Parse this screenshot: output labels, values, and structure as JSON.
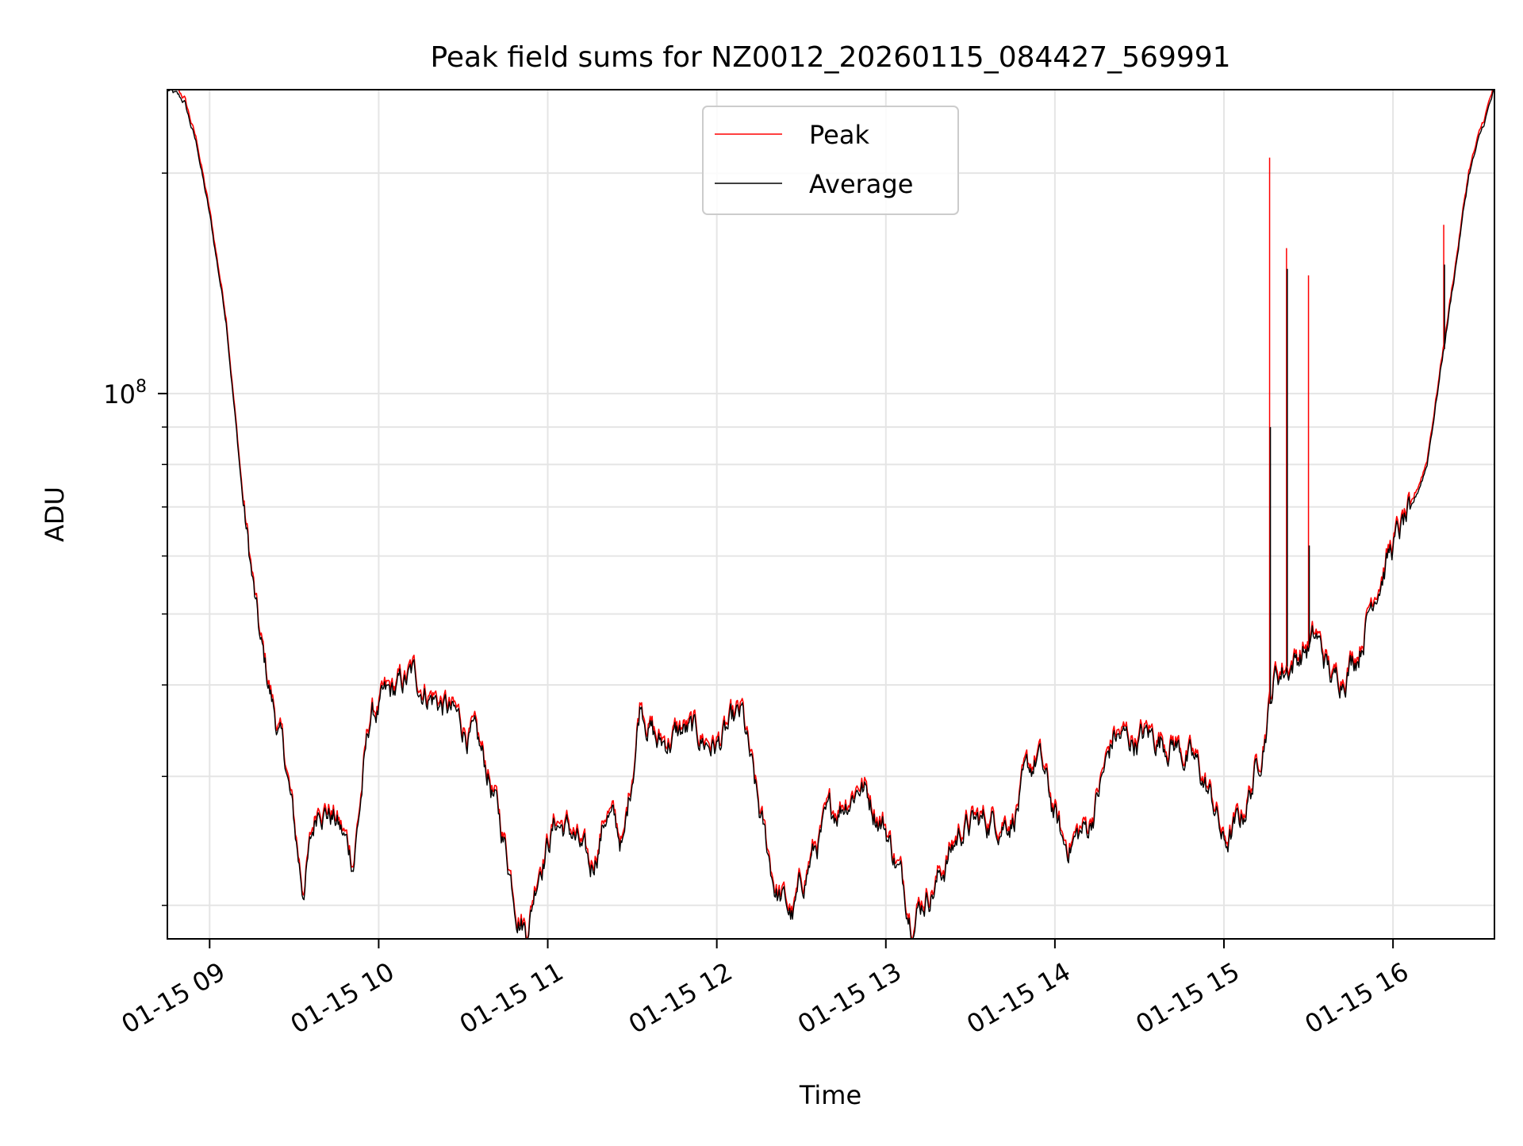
{
  "chart_data": {
    "type": "line",
    "title": "Peak field sums for NZ0012_20260115_084427_569991",
    "xlabel": "Time",
    "ylabel": "ADU",
    "yscale": "log",
    "ylim": [
      18000000,
      260000000
    ],
    "xlim_hours": [
      8.75,
      16.6
    ],
    "x_ticks": [
      {
        "hour": 9,
        "label": "01-15 09"
      },
      {
        "hour": 10,
        "label": "01-15 10"
      },
      {
        "hour": 11,
        "label": "01-15 11"
      },
      {
        "hour": 12,
        "label": "01-15 12"
      },
      {
        "hour": 13,
        "label": "01-15 13"
      },
      {
        "hour": 14,
        "label": "01-15 14"
      },
      {
        "hour": 15,
        "label": "01-15 15"
      },
      {
        "hour": 16,
        "label": "01-15 16"
      }
    ],
    "y_major_ticks": [
      {
        "value": 100000000,
        "base": "10",
        "exp": "8"
      }
    ],
    "y_minor_ticks": [
      20000000,
      30000000,
      40000000,
      50000000,
      60000000,
      70000000,
      80000000,
      90000000,
      200000000
    ],
    "grid": true,
    "legend_position": "top-center",
    "x_knots_hours": [
      8.75,
      8.85,
      8.93,
      9.0,
      9.1,
      9.2,
      9.3,
      9.45,
      9.55,
      9.65,
      9.75,
      9.85,
      9.95,
      10.05,
      10.2,
      10.4,
      10.55,
      10.65,
      10.75,
      10.82,
      10.88,
      10.95,
      11.05,
      11.15,
      11.25,
      11.35,
      11.45,
      11.55,
      11.65,
      11.8,
      12.0,
      12.15,
      12.25,
      12.35,
      12.45,
      12.55,
      12.7,
      12.85,
      13.0,
      13.15,
      13.3,
      13.45,
      13.6,
      13.75,
      13.9,
      14.05,
      14.2,
      14.35,
      14.45,
      14.55,
      14.7,
      14.85,
      14.95,
      15.0,
      15.1,
      15.2,
      15.3,
      15.45,
      15.55,
      15.65,
      15.8,
      15.9,
      16.0,
      16.1,
      16.2,
      16.3,
      16.45,
      16.6
    ],
    "series": [
      {
        "name": "Peak",
        "color": "#ff0000",
        "values": [
          260000000,
          250000000,
          215000000,
          175000000,
          125000000,
          70000000,
          45000000,
          31000000,
          21000000,
          28000000,
          26000000,
          23000000,
          36000000,
          38000000,
          41000000,
          37000000,
          34000000,
          30000000,
          24000000,
          20000000,
          18500000,
          23000000,
          26000000,
          25000000,
          22000000,
          27000000,
          24000000,
          38500000,
          33000000,
          34500000,
          33000000,
          36000000,
          26500000,
          21000000,
          19200000,
          23000000,
          27000000,
          29500000,
          25500000,
          19500000,
          21500000,
          25500000,
          26000000,
          26500000,
          32000000,
          24000000,
          25500000,
          34000000,
          33500000,
          34000000,
          33500000,
          30500000,
          27000000,
          24000000,
          26000000,
          31000000,
          41000000,
          44000000,
          46000000,
          40000000,
          45000000,
          55000000,
          62000000,
          68000000,
          80000000,
          115000000,
          200000000,
          260000000
        ]
      },
      {
        "name": "Average",
        "color": "#000000",
        "values": [
          260000000,
          250000000,
          215000000,
          175000000,
          125000000,
          70000000,
          45000000,
          31000000,
          21000000,
          28000000,
          26000000,
          23000000,
          36000000,
          38000000,
          41000000,
          37000000,
          34000000,
          30000000,
          24000000,
          20000000,
          18500000,
          23000000,
          26000000,
          25000000,
          22000000,
          27000000,
          24000000,
          38500000,
          33000000,
          34500000,
          33000000,
          36000000,
          26500000,
          21000000,
          19200000,
          23000000,
          27000000,
          29500000,
          25500000,
          19500000,
          21500000,
          25500000,
          26000000,
          26500000,
          32000000,
          24000000,
          25500000,
          34000000,
          33500000,
          34000000,
          33500000,
          30500000,
          27000000,
          24000000,
          26000000,
          31000000,
          41000000,
          44000000,
          46000000,
          40000000,
          45000000,
          55000000,
          62000000,
          68000000,
          80000000,
          115000000,
          200000000,
          260000000
        ]
      }
    ],
    "spikes": [
      {
        "hour": 15.27,
        "peak": 210000000,
        "average": 90000000
      },
      {
        "hour": 15.37,
        "peak": 158000000,
        "average": 148000000
      },
      {
        "hour": 15.5,
        "peak": 145000000,
        "average": 62000000
      },
      {
        "hour": 16.3,
        "peak": 170000000,
        "average": 150000000
      }
    ]
  }
}
